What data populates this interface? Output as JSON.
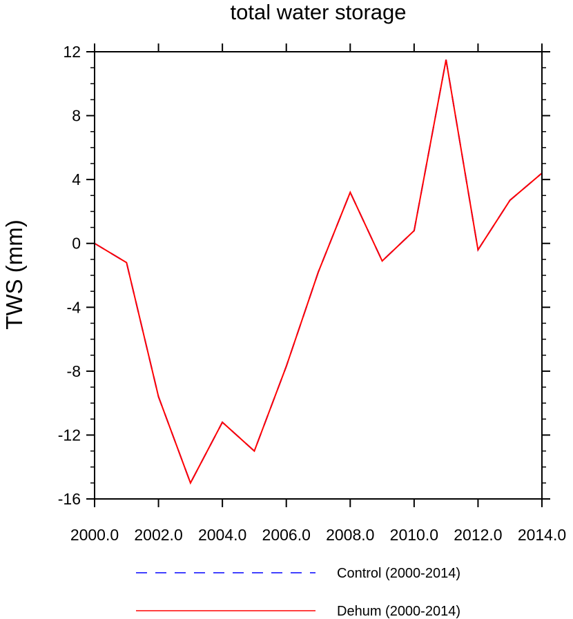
{
  "chart_data": {
    "type": "line",
    "title": "total water storage",
    "xlabel": "",
    "ylabel": "TWS  (mm)",
    "xlim": [
      2000,
      2014
    ],
    "ylim": [
      -16,
      12
    ],
    "x_ticks": [
      2000,
      2002,
      2004,
      2006,
      2008,
      2010,
      2012,
      2014
    ],
    "x_tick_labels": [
      "2000.0",
      "2002.0",
      "2004.0",
      "2006.0",
      "2008.0",
      "2010.0",
      "2012.0",
      "2014.0"
    ],
    "y_ticks": [
      -16,
      -12,
      -8,
      -4,
      0,
      4,
      8,
      12
    ],
    "y_tick_labels": [
      "-16",
      "-12",
      "-8",
      "-4",
      "0",
      "4",
      "8",
      "12"
    ],
    "grid": false,
    "legend_position": "bottom",
    "x": [
      2000,
      2001,
      2002,
      2003,
      2004,
      2005,
      2006,
      2007,
      2008,
      2009,
      2010,
      2011,
      2012,
      2013,
      2014
    ],
    "series": [
      {
        "name": "Control (2000-2014)",
        "color": "#0000ff",
        "style": "dashed",
        "values": [
          0.0,
          -1.2,
          -9.6,
          -15.0,
          -11.2,
          -13.0,
          -7.7,
          -1.8,
          3.2,
          -1.1,
          0.8,
          11.5,
          -0.4,
          2.7,
          4.4
        ]
      },
      {
        "name": "Dehum (2000-2014)",
        "color": "#ff0000",
        "style": "solid",
        "values": [
          0.0,
          -1.2,
          -9.6,
          -15.0,
          -11.2,
          -13.0,
          -7.7,
          -1.8,
          3.2,
          -1.1,
          0.8,
          11.5,
          -0.4,
          2.7,
          4.4
        ]
      }
    ]
  }
}
